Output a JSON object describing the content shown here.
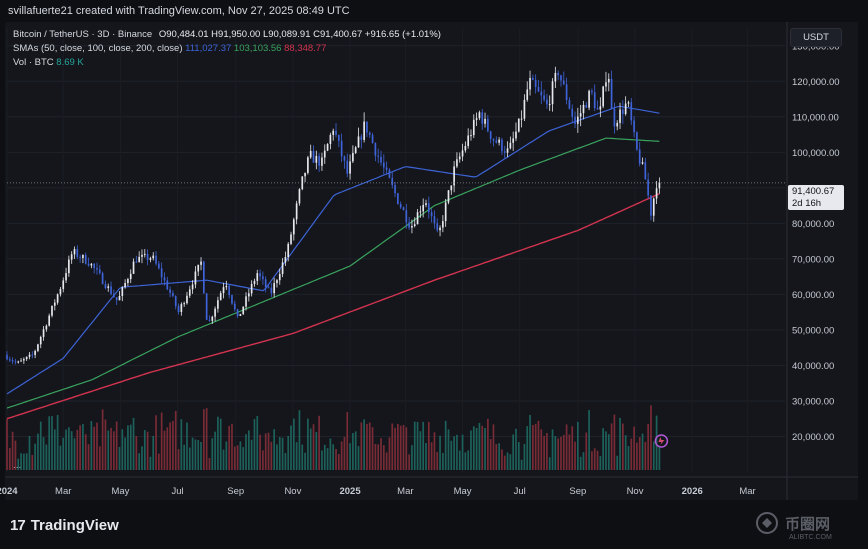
{
  "header": {
    "caption": "svillafuerte21 created with TradingView.com, Nov 27, 2025 08:49 UTC"
  },
  "legend": {
    "symbol": "Bitcoin / TetherUS · 3D · Binance",
    "open": "O90,484.01",
    "high": "H91,950.00",
    "low": "L90,089.91",
    "close": "C91,400.67",
    "change": "+916.65 (+1.01%)",
    "sma_label": "SMAs (50, close, 100, close, 200, close)",
    "sma50_value": "111,027.37",
    "sma100_value": "103,103.56",
    "sma200_value": "88,348.77",
    "vol_label": "Vol · BTC",
    "vol_value": "8.69 K"
  },
  "currency": "USDT",
  "price_tag": {
    "price": "91,400.67",
    "countdown": "2d 16h"
  },
  "more_label": "...",
  "footer": {
    "brand": "TradingView",
    "watermark": "币圈网",
    "watermark_sub": "ALIBTC.COM"
  },
  "colors": {
    "up": "#e6e8ee",
    "down": "#3f63d8",
    "sma50": "#3d63d6",
    "sma100": "#3aa35d",
    "sma200": "#d2334e",
    "vol_up": "#1f6f66",
    "vol_down": "#8b2f3b",
    "background": "#14161c"
  },
  "chart_data": {
    "type": "candlestick",
    "symbol": "BTCUSDT",
    "y_axis": {
      "min": 10000,
      "max": 135000,
      "ticks": [
        "130,000.00",
        "120,000.00",
        "110,000.00",
        "100,000.00",
        "90,000.00",
        "80,000.00",
        "70,000.00",
        "60,000.00",
        "50,000.00",
        "40,000.00",
        "30,000.00",
        "20,000.00"
      ]
    },
    "x_axis": {
      "ticks": [
        "2024",
        "Mar",
        "May",
        "Jul",
        "Sep",
        "Nov",
        "2025",
        "Mar",
        "May",
        "Jul",
        "Sep",
        "Nov",
        "2026",
        "Mar"
      ]
    },
    "price_path": [
      [
        "2024-01-01",
        43000
      ],
      [
        "2024-01-15",
        40500
      ],
      [
        "2024-02-01",
        43000
      ],
      [
        "2024-02-15",
        52000
      ],
      [
        "2024-03-01",
        62000
      ],
      [
        "2024-03-14",
        72000
      ],
      [
        "2024-04-01",
        69000
      ],
      [
        "2024-04-15",
        64000
      ],
      [
        "2024-05-01",
        58000
      ],
      [
        "2024-05-20",
        70000
      ],
      [
        "2024-06-07",
        70500
      ],
      [
        "2024-06-25",
        61000
      ],
      [
        "2024-07-05",
        55000
      ],
      [
        "2024-07-29",
        69000
      ],
      [
        "2024-08-05",
        51000
      ],
      [
        "2024-08-24",
        64000
      ],
      [
        "2024-09-06",
        53000
      ],
      [
        "2024-09-27",
        66000
      ],
      [
        "2024-10-11",
        60000
      ],
      [
        "2024-10-29",
        72000
      ],
      [
        "2024-11-13",
        91000
      ],
      [
        "2024-11-22",
        99000
      ],
      [
        "2024-12-05",
        97000
      ],
      [
        "2024-12-17",
        107000
      ],
      [
        "2025-01-01",
        94000
      ],
      [
        "2025-01-20",
        108000
      ],
      [
        "2025-02-01",
        100000
      ],
      [
        "2025-02-25",
        86000
      ],
      [
        "2025-03-10",
        79000
      ],
      [
        "2025-03-25",
        87000
      ],
      [
        "2025-04-08",
        76000
      ],
      [
        "2025-04-25",
        95000
      ],
      [
        "2025-05-10",
        104000
      ],
      [
        "2025-05-22",
        111000
      ],
      [
        "2025-06-05",
        104000
      ],
      [
        "2025-06-22",
        100000
      ],
      [
        "2025-07-05",
        109000
      ],
      [
        "2025-07-14",
        120000
      ],
      [
        "2025-08-02",
        113000
      ],
      [
        "2025-08-14",
        123000
      ],
      [
        "2025-09-01",
        108000
      ],
      [
        "2025-09-18",
        117000
      ],
      [
        "2025-09-27",
        110000
      ],
      [
        "2025-10-06",
        125000
      ],
      [
        "2025-10-11",
        108000
      ],
      [
        "2025-10-27",
        114000
      ],
      [
        "2025-11-05",
        101000
      ],
      [
        "2025-11-14",
        94000
      ],
      [
        "2025-11-21",
        83000
      ],
      [
        "2025-11-27",
        91400
      ]
    ],
    "sma200_path": [
      [
        "2024-01-01",
        25000
      ],
      [
        "2024-06-01",
        38000
      ],
      [
        "2024-11-01",
        49000
      ],
      [
        "2025-04-01",
        64000
      ],
      [
        "2025-09-01",
        78000
      ],
      [
        "2025-11-27",
        88348
      ]
    ],
    "sma100_path": [
      [
        "2024-01-01",
        28000
      ],
      [
        "2024-04-01",
        36000
      ],
      [
        "2024-07-01",
        48000
      ],
      [
        "2024-10-01",
        58000
      ],
      [
        "2025-01-01",
        68000
      ],
      [
        "2025-04-01",
        85000
      ],
      [
        "2025-07-01",
        95000
      ],
      [
        "2025-10-01",
        104000
      ],
      [
        "2025-11-27",
        103103
      ]
    ],
    "sma50_path": [
      [
        "2024-01-01",
        32000
      ],
      [
        "2024-03-01",
        42000
      ],
      [
        "2024-05-01",
        62000
      ],
      [
        "2024-08-01",
        64000
      ],
      [
        "2024-10-01",
        61000
      ],
      [
        "2024-12-15",
        88000
      ],
      [
        "2025-03-01",
        96000
      ],
      [
        "2025-05-15",
        93000
      ],
      [
        "2025-08-01",
        106000
      ],
      [
        "2025-10-15",
        113000
      ],
      [
        "2025-11-27",
        111027
      ]
    ]
  }
}
